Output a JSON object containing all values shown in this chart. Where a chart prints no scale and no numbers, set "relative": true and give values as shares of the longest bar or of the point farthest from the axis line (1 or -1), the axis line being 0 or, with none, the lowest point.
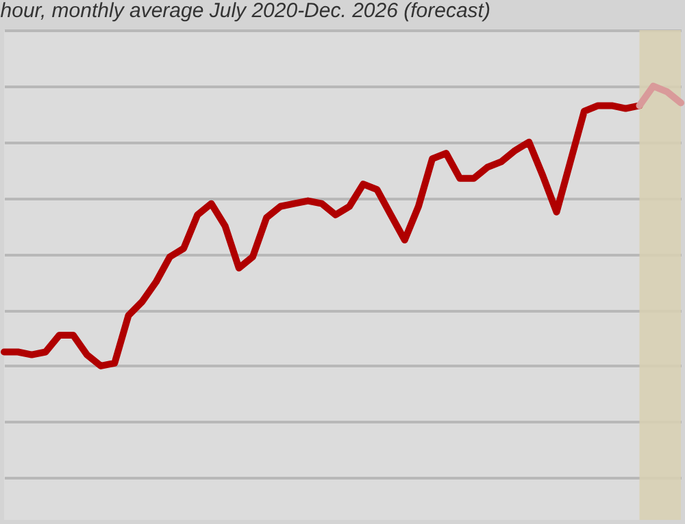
{
  "chart_data": {
    "type": "line",
    "title": "hour, monthly average July 2020-Dec. 2026 (forecast)",
    "relative": true,
    "grid": "y",
    "line_style": "solid",
    "marker": "none",
    "categories": [
      null,
      null,
      null,
      null,
      null,
      null,
      null,
      null,
      null,
      null,
      null,
      null,
      null,
      null,
      null,
      null,
      null,
      null,
      null,
      null,
      null,
      null,
      null,
      null,
      null,
      null,
      null,
      null,
      null,
      null,
      null,
      null,
      null,
      null,
      null,
      null,
      null,
      null,
      null,
      null,
      null,
      null,
      null,
      null,
      null,
      null,
      null,
      null,
      null,
      null
    ],
    "series": [
      {
        "color": "#b00000",
        "values": [
          0.05,
          0.05,
          0.04,
          0.05,
          0.11,
          0.11,
          0.04,
          0,
          0.01,
          0.18,
          0.23,
          0.3,
          0.39,
          0.42,
          0.54,
          0.58,
          0.5,
          0.35,
          0.39,
          0.53,
          0.57,
          0.58,
          0.59,
          0.58,
          0.54,
          0.57,
          0.65,
          0.63,
          0.54,
          0.45,
          0.57,
          0.74,
          0.76,
          0.67,
          0.67,
          0.71,
          0.73,
          0.77,
          0.8,
          0.68,
          0.55,
          0.73,
          0.91,
          0.93,
          0.93,
          0.92,
          0.93,
          null,
          null,
          null
        ]
      },
      {
        "color": "#d99a9a",
        "values": [
          null,
          null,
          null,
          null,
          null,
          null,
          null,
          null,
          null,
          null,
          null,
          null,
          null,
          null,
          null,
          null,
          null,
          null,
          null,
          null,
          null,
          null,
          null,
          null,
          null,
          null,
          null,
          null,
          null,
          null,
          null,
          null,
          null,
          null,
          null,
          null,
          null,
          null,
          null,
          null,
          null,
          null,
          null,
          null,
          null,
          null,
          0.93,
          1.0,
          0.98,
          0.94
        ]
      }
    ]
  }
}
